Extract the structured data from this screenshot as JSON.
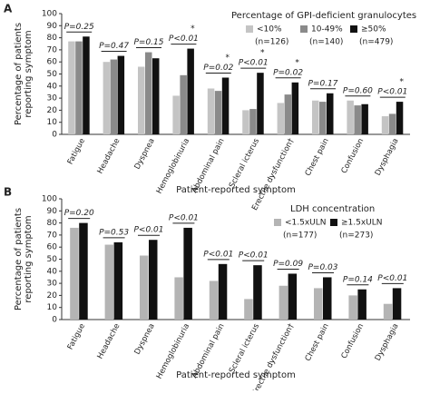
{
  "chart_data": [
    {
      "type": "bar",
      "panel": "A",
      "ylabel": [
        "Percentage of patients",
        "reporting symptom"
      ],
      "xlabel": "Patient-reported symptom",
      "legend_title": "Percentage of GPI-deficient granulocytes",
      "categories": [
        "Fatigue",
        "Headache",
        "Dyspnea",
        "Hemoglobinuria",
        "Abdominal pain",
        "Scleral icterus",
        "Erectile dysfunction†",
        "Chest pain",
        "Confusion",
        "Dysphagia"
      ],
      "series": [
        {
          "name": "<10%",
          "n": "(n=126)",
          "color": "#c4c4c4",
          "values": [
            77,
            60,
            56,
            32,
            38,
            20,
            26,
            28,
            28,
            15
          ]
        },
        {
          "name": "10-49%",
          "n": "(n=140)",
          "color": "#8a8a8a",
          "values": [
            77,
            62,
            68,
            49,
            36,
            21,
            33,
            27,
            24,
            17
          ]
        },
        {
          "name": "≥50%",
          "n": "(n=479)",
          "color": "#111111",
          "values": [
            81,
            65,
            63,
            71,
            47,
            51,
            43,
            34,
            25,
            27
          ]
        }
      ],
      "p_values": [
        "P=0.25",
        "P=0.47",
        "P=0.15",
        "P<0.01",
        "P=0.02",
        "P<0.01",
        "P=0.02",
        "P=0.17",
        "P=0.60",
        "P<0.01"
      ],
      "stars": [
        null,
        null,
        null,
        "*",
        "*",
        "*",
        "*",
        null,
        null,
        "*"
      ],
      "ylim": [
        0,
        100
      ],
      "yticks": [
        0,
        10,
        20,
        30,
        40,
        50,
        60,
        70,
        80,
        90,
        100
      ]
    },
    {
      "type": "bar",
      "panel": "B",
      "ylabel": [
        "Percentage of patients",
        "reporting symptom"
      ],
      "xlabel": "Patient-reported symptom",
      "legend_title": "LDH concentration",
      "categories": [
        "Fatigue",
        "Headache",
        "Dyspnea",
        "Hemoglobinuria",
        "Abdominal pain",
        "Scleral icterus",
        "Erectile dysfunction†",
        "Chest pain",
        "Confusion",
        "Dysphagia"
      ],
      "series": [
        {
          "name": "<1.5xULN",
          "n": "(n=177)",
          "color": "#b4b4b4",
          "values": [
            76,
            62,
            53,
            35,
            32,
            17,
            28,
            26,
            20,
            13
          ]
        },
        {
          "name": "≥1.5xULN",
          "n": "(n=273)",
          "color": "#111111",
          "values": [
            80,
            64,
            66,
            76,
            46,
            45,
            38,
            35,
            25,
            26
          ]
        }
      ],
      "p_values": [
        "P=0.20",
        "P=0.53",
        "P<0.01",
        "P<0.01",
        "P<0.01",
        "P<0.01",
        "P=0.09",
        "P=0.03",
        "P=0.14",
        "P<0.01"
      ],
      "stars": [
        null,
        null,
        null,
        null,
        null,
        null,
        null,
        null,
        null,
        null
      ],
      "ylim": [
        0,
        100
      ],
      "yticks": [
        0,
        10,
        20,
        30,
        40,
        50,
        60,
        70,
        80,
        90,
        100
      ]
    }
  ]
}
